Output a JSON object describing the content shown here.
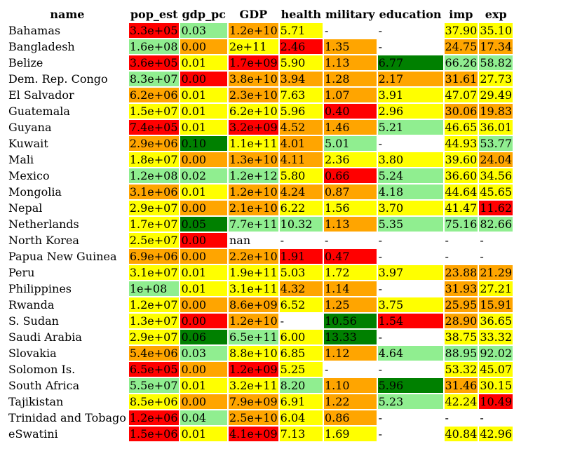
{
  "colors": {
    "red": "#ff0000",
    "orange": "#ffa500",
    "yellow": "#ffff00",
    "lightgreen": "#90ee90",
    "green": "#008000",
    "none": "#ffffff"
  },
  "chart_data": {
    "type": "table",
    "columns": [
      "name",
      "pop_est",
      "gdp_pc",
      "GDP",
      "health",
      "military",
      "education",
      "imp",
      "exp"
    ],
    "rows": [
      {
        "name": "Bahamas",
        "cells": [
          [
            "3.3e+05",
            "red"
          ],
          [
            "0.03",
            "lightgreen"
          ],
          [
            "1.2e+10",
            "orange"
          ],
          [
            "5.71",
            "yellow"
          ],
          [
            "-",
            "none"
          ],
          [
            "-",
            "none"
          ],
          [
            "37.90",
            "yellow"
          ],
          [
            "35.10",
            "yellow"
          ]
        ]
      },
      {
        "name": "Bangladesh",
        "cells": [
          [
            "1.6e+08",
            "lightgreen"
          ],
          [
            "0.00",
            "orange"
          ],
          [
            "2e+11",
            "yellow"
          ],
          [
            "2.46",
            "red"
          ],
          [
            "1.35",
            "orange"
          ],
          [
            "-",
            "none"
          ],
          [
            "24.75",
            "orange"
          ],
          [
            "17.34",
            "orange"
          ]
        ]
      },
      {
        "name": "Belize",
        "cells": [
          [
            "3.6e+05",
            "red"
          ],
          [
            "0.01",
            "yellow"
          ],
          [
            "1.7e+09",
            "red"
          ],
          [
            "5.90",
            "yellow"
          ],
          [
            "1.13",
            "orange"
          ],
          [
            "6.77",
            "green"
          ],
          [
            "66.26",
            "lightgreen"
          ],
          [
            "58.82",
            "lightgreen"
          ]
        ]
      },
      {
        "name": "Dem. Rep. Congo",
        "cells": [
          [
            "8.3e+07",
            "lightgreen"
          ],
          [
            "0.00",
            "red"
          ],
          [
            "3.8e+10",
            "orange"
          ],
          [
            "3.94",
            "orange"
          ],
          [
            "1.28",
            "orange"
          ],
          [
            "2.17",
            "orange"
          ],
          [
            "31.61",
            "orange"
          ],
          [
            "27.73",
            "yellow"
          ]
        ]
      },
      {
        "name": "El Salvador",
        "cells": [
          [
            "6.2e+06",
            "orange"
          ],
          [
            "0.01",
            "yellow"
          ],
          [
            "2.3e+10",
            "orange"
          ],
          [
            "7.63",
            "yellow"
          ],
          [
            "1.07",
            "orange"
          ],
          [
            "3.91",
            "yellow"
          ],
          [
            "47.07",
            "yellow"
          ],
          [
            "29.49",
            "yellow"
          ]
        ]
      },
      {
        "name": "Guatemala",
        "cells": [
          [
            "1.5e+07",
            "yellow"
          ],
          [
            "0.01",
            "yellow"
          ],
          [
            "6.2e+10",
            "yellow"
          ],
          [
            "5.96",
            "yellow"
          ],
          [
            "0.40",
            "red"
          ],
          [
            "2.96",
            "yellow"
          ],
          [
            "30.06",
            "orange"
          ],
          [
            "19.83",
            "orange"
          ]
        ]
      },
      {
        "name": "Guyana",
        "cells": [
          [
            "7.4e+05",
            "red"
          ],
          [
            "0.01",
            "yellow"
          ],
          [
            "3.2e+09",
            "red"
          ],
          [
            "4.52",
            "orange"
          ],
          [
            "1.46",
            "orange"
          ],
          [
            "5.21",
            "lightgreen"
          ],
          [
            "46.65",
            "yellow"
          ],
          [
            "36.01",
            "yellow"
          ]
        ]
      },
      {
        "name": "Kuwait",
        "cells": [
          [
            "2.9e+06",
            "orange"
          ],
          [
            "0.10",
            "green"
          ],
          [
            "1.1e+11",
            "yellow"
          ],
          [
            "4.01",
            "orange"
          ],
          [
            "5.01",
            "lightgreen"
          ],
          [
            "-",
            "none"
          ],
          [
            "44.93",
            "yellow"
          ],
          [
            "53.77",
            "lightgreen"
          ]
        ]
      },
      {
        "name": "Mali",
        "cells": [
          [
            "1.8e+07",
            "yellow"
          ],
          [
            "0.00",
            "orange"
          ],
          [
            "1.3e+10",
            "orange"
          ],
          [
            "4.11",
            "orange"
          ],
          [
            "2.36",
            "yellow"
          ],
          [
            "3.80",
            "yellow"
          ],
          [
            "39.60",
            "yellow"
          ],
          [
            "24.04",
            "orange"
          ]
        ]
      },
      {
        "name": "Mexico",
        "cells": [
          [
            "1.2e+08",
            "lightgreen"
          ],
          [
            "0.02",
            "lightgreen"
          ],
          [
            "1.2e+12",
            "lightgreen"
          ],
          [
            "5.80",
            "yellow"
          ],
          [
            "0.66",
            "red"
          ],
          [
            "5.24",
            "lightgreen"
          ],
          [
            "36.60",
            "yellow"
          ],
          [
            "34.56",
            "yellow"
          ]
        ]
      },
      {
        "name": "Mongolia",
        "cells": [
          [
            "3.1e+06",
            "orange"
          ],
          [
            "0.01",
            "yellow"
          ],
          [
            "1.2e+10",
            "orange"
          ],
          [
            "4.24",
            "orange"
          ],
          [
            "0.87",
            "orange"
          ],
          [
            "4.18",
            "lightgreen"
          ],
          [
            "44.64",
            "yellow"
          ],
          [
            "45.65",
            "yellow"
          ]
        ]
      },
      {
        "name": "Nepal",
        "cells": [
          [
            "2.9e+07",
            "yellow"
          ],
          [
            "0.00",
            "orange"
          ],
          [
            "2.1e+10",
            "orange"
          ],
          [
            "6.22",
            "yellow"
          ],
          [
            "1.56",
            "yellow"
          ],
          [
            "3.70",
            "yellow"
          ],
          [
            "41.47",
            "yellow"
          ],
          [
            "11.62",
            "red"
          ]
        ]
      },
      {
        "name": "Netherlands",
        "cells": [
          [
            "1.7e+07",
            "yellow"
          ],
          [
            "0.05",
            "green"
          ],
          [
            "7.7e+11",
            "lightgreen"
          ],
          [
            "10.32",
            "lightgreen"
          ],
          [
            "1.13",
            "orange"
          ],
          [
            "5.35",
            "lightgreen"
          ],
          [
            "75.16",
            "lightgreen"
          ],
          [
            "82.66",
            "lightgreen"
          ]
        ]
      },
      {
        "name": "North Korea",
        "cells": [
          [
            "2.5e+07",
            "yellow"
          ],
          [
            "0.00",
            "red"
          ],
          [
            "nan",
            "none"
          ],
          [
            "-",
            "none"
          ],
          [
            "-",
            "none"
          ],
          [
            "-",
            "none"
          ],
          [
            "-",
            "none"
          ],
          [
            "-",
            "none"
          ]
        ]
      },
      {
        "name": "Papua New Guinea",
        "cells": [
          [
            "6.9e+06",
            "orange"
          ],
          [
            "0.00",
            "orange"
          ],
          [
            "2.2e+10",
            "orange"
          ],
          [
            "1.91",
            "red"
          ],
          [
            "0.47",
            "red"
          ],
          [
            "-",
            "none"
          ],
          [
            "-",
            "none"
          ],
          [
            "-",
            "none"
          ]
        ]
      },
      {
        "name": "Peru",
        "cells": [
          [
            "3.1e+07",
            "yellow"
          ],
          [
            "0.01",
            "yellow"
          ],
          [
            "1.9e+11",
            "yellow"
          ],
          [
            "5.03",
            "yellow"
          ],
          [
            "1.72",
            "yellow"
          ],
          [
            "3.97",
            "yellow"
          ],
          [
            "23.88",
            "orange"
          ],
          [
            "21.29",
            "orange"
          ]
        ]
      },
      {
        "name": "Philippines",
        "cells": [
          [
            "1e+08",
            "lightgreen"
          ],
          [
            "0.01",
            "yellow"
          ],
          [
            "3.1e+11",
            "yellow"
          ],
          [
            "4.32",
            "orange"
          ],
          [
            "1.14",
            "orange"
          ],
          [
            "-",
            "none"
          ],
          [
            "31.93",
            "orange"
          ],
          [
            "27.21",
            "yellow"
          ]
        ]
      },
      {
        "name": "Rwanda",
        "cells": [
          [
            "1.2e+07",
            "yellow"
          ],
          [
            "0.00",
            "orange"
          ],
          [
            "8.6e+09",
            "orange"
          ],
          [
            "6.52",
            "yellow"
          ],
          [
            "1.25",
            "orange"
          ],
          [
            "3.75",
            "yellow"
          ],
          [
            "25.95",
            "orange"
          ],
          [
            "15.91",
            "orange"
          ]
        ]
      },
      {
        "name": "S. Sudan",
        "cells": [
          [
            "1.3e+07",
            "yellow"
          ],
          [
            "0.00",
            "red"
          ],
          [
            "1.2e+10",
            "orange"
          ],
          [
            "-",
            "none"
          ],
          [
            "10.56",
            "green"
          ],
          [
            "1.54",
            "red"
          ],
          [
            "28.90",
            "orange"
          ],
          [
            "36.65",
            "yellow"
          ]
        ]
      },
      {
        "name": "Saudi Arabia",
        "cells": [
          [
            "2.9e+07",
            "yellow"
          ],
          [
            "0.06",
            "green"
          ],
          [
            "6.5e+11",
            "lightgreen"
          ],
          [
            "6.00",
            "yellow"
          ],
          [
            "13.33",
            "green"
          ],
          [
            "-",
            "none"
          ],
          [
            "38.75",
            "yellow"
          ],
          [
            "33.32",
            "yellow"
          ]
        ]
      },
      {
        "name": "Slovakia",
        "cells": [
          [
            "5.4e+06",
            "orange"
          ],
          [
            "0.03",
            "lightgreen"
          ],
          [
            "8.8e+10",
            "yellow"
          ],
          [
            "6.85",
            "yellow"
          ],
          [
            "1.12",
            "orange"
          ],
          [
            "4.64",
            "lightgreen"
          ],
          [
            "88.95",
            "lightgreen"
          ],
          [
            "92.02",
            "lightgreen"
          ]
        ]
      },
      {
        "name": "Solomon Is.",
        "cells": [
          [
            "6.5e+05",
            "red"
          ],
          [
            "0.00",
            "orange"
          ],
          [
            "1.2e+09",
            "red"
          ],
          [
            "5.25",
            "yellow"
          ],
          [
            "-",
            "none"
          ],
          [
            "-",
            "none"
          ],
          [
            "53.32",
            "yellow"
          ],
          [
            "45.07",
            "yellow"
          ]
        ]
      },
      {
        "name": "South Africa",
        "cells": [
          [
            "5.5e+07",
            "lightgreen"
          ],
          [
            "0.01",
            "yellow"
          ],
          [
            "3.2e+11",
            "yellow"
          ],
          [
            "8.20",
            "lightgreen"
          ],
          [
            "1.10",
            "orange"
          ],
          [
            "5.96",
            "green"
          ],
          [
            "31.46",
            "orange"
          ],
          [
            "30.15",
            "yellow"
          ]
        ]
      },
      {
        "name": "Tajikistan",
        "cells": [
          [
            "8.5e+06",
            "yellow"
          ],
          [
            "0.00",
            "orange"
          ],
          [
            "7.9e+09",
            "orange"
          ],
          [
            "6.91",
            "yellow"
          ],
          [
            "1.22",
            "orange"
          ],
          [
            "5.23",
            "lightgreen"
          ],
          [
            "42.24",
            "yellow"
          ],
          [
            "10.49",
            "red"
          ]
        ]
      },
      {
        "name": "Trinidad and Tobago",
        "cells": [
          [
            "1.2e+06",
            "red"
          ],
          [
            "0.04",
            "lightgreen"
          ],
          [
            "2.5e+10",
            "orange"
          ],
          [
            "6.04",
            "yellow"
          ],
          [
            "0.86",
            "orange"
          ],
          [
            "-",
            "none"
          ],
          [
            "-",
            "none"
          ],
          [
            "-",
            "none"
          ]
        ]
      },
      {
        "name": "eSwatini",
        "cells": [
          [
            "1.5e+06",
            "red"
          ],
          [
            "0.01",
            "yellow"
          ],
          [
            "4.1e+09",
            "red"
          ],
          [
            "7.13",
            "yellow"
          ],
          [
            "1.69",
            "yellow"
          ],
          [
            "-",
            "none"
          ],
          [
            "40.84",
            "yellow"
          ],
          [
            "42.96",
            "yellow"
          ]
        ]
      }
    ]
  }
}
